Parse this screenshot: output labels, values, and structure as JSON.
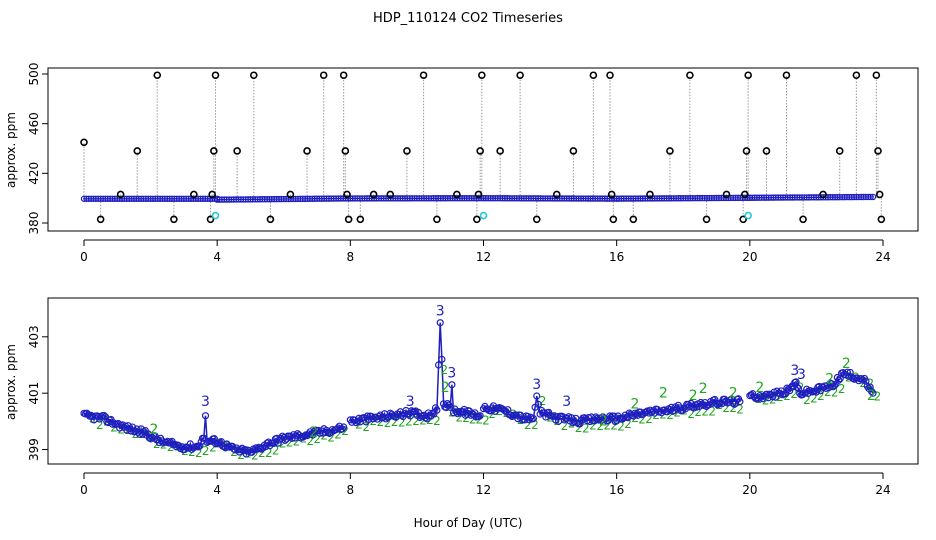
{
  "title": "HDP_110124  CO2 Timeseries",
  "xlabel": "Hour of Day (UTC)",
  "colors": {
    "top_points": "#000000",
    "top_line": "#1f1fbf",
    "top_cyan": "#22c8e0",
    "spike_lines": "#9a9a9a",
    "series3": "#1f1fbf",
    "series2": "#1fa61f"
  },
  "chart_data": [
    {
      "type": "scatter",
      "ylabel": "approx. ppm",
      "xlim": [
        0,
        24
      ],
      "ylim": [
        380,
        500
      ],
      "x_ticks": [
        "0",
        "4",
        "8",
        "12",
        "16",
        "20",
        "24"
      ],
      "y_ticks": [
        "380",
        "420",
        "460",
        "500"
      ],
      "baseline_segments": [
        {
          "x0": 0.0,
          "x1": 4.0,
          "y0": 399.5,
          "y1": 399.5
        },
        {
          "x0": 4.0,
          "x1": 8.0,
          "y0": 398.8,
          "y1": 399.8
        },
        {
          "x0": 8.0,
          "x1": 12.0,
          "y0": 399.8,
          "y1": 400.0
        },
        {
          "x0": 12.0,
          "x1": 16.0,
          "y0": 400.0,
          "y1": 399.6
        },
        {
          "x0": 16.0,
          "x1": 20.0,
          "y0": 399.6,
          "y1": 400.3
        },
        {
          "x0": 20.0,
          "x1": 23.7,
          "y0": 400.3,
          "y1": 401.0
        }
      ],
      "spikes": [
        {
          "x": 0.0,
          "y": 445
        },
        {
          "x": 0.5,
          "y": 383
        },
        {
          "x": 1.1,
          "y": 403
        },
        {
          "x": 1.6,
          "y": 438
        },
        {
          "x": 2.2,
          "y": 499
        },
        {
          "x": 2.7,
          "y": 383
        },
        {
          "x": 3.3,
          "y": 403
        },
        {
          "x": 3.8,
          "y": 383
        },
        {
          "x": 3.85,
          "y": 403
        },
        {
          "x": 3.9,
          "y": 438
        },
        {
          "x": 3.95,
          "y": 499
        },
        {
          "x": 4.6,
          "y": 438
        },
        {
          "x": 5.1,
          "y": 499
        },
        {
          "x": 5.6,
          "y": 383
        },
        {
          "x": 6.2,
          "y": 403
        },
        {
          "x": 6.7,
          "y": 438
        },
        {
          "x": 7.2,
          "y": 499
        },
        {
          "x": 7.8,
          "y": 499
        },
        {
          "x": 7.85,
          "y": 438
        },
        {
          "x": 7.9,
          "y": 403
        },
        {
          "x": 7.95,
          "y": 383
        },
        {
          "x": 8.3,
          "y": 383
        },
        {
          "x": 8.7,
          "y": 403
        },
        {
          "x": 9.2,
          "y": 403
        },
        {
          "x": 9.7,
          "y": 438
        },
        {
          "x": 10.2,
          "y": 499
        },
        {
          "x": 10.6,
          "y": 383
        },
        {
          "x": 11.2,
          "y": 403
        },
        {
          "x": 11.8,
          "y": 383
        },
        {
          "x": 11.85,
          "y": 403
        },
        {
          "x": 11.9,
          "y": 438
        },
        {
          "x": 11.95,
          "y": 499
        },
        {
          "x": 12.5,
          "y": 438
        },
        {
          "x": 13.1,
          "y": 499
        },
        {
          "x": 13.6,
          "y": 383
        },
        {
          "x": 14.2,
          "y": 403
        },
        {
          "x": 14.7,
          "y": 438
        },
        {
          "x": 15.3,
          "y": 499
        },
        {
          "x": 15.8,
          "y": 499
        },
        {
          "x": 15.85,
          "y": 403
        },
        {
          "x": 15.9,
          "y": 383
        },
        {
          "x": 16.5,
          "y": 383
        },
        {
          "x": 17.0,
          "y": 403
        },
        {
          "x": 17.6,
          "y": 438
        },
        {
          "x": 18.2,
          "y": 499
        },
        {
          "x": 18.7,
          "y": 383
        },
        {
          "x": 19.3,
          "y": 403
        },
        {
          "x": 19.8,
          "y": 383
        },
        {
          "x": 19.85,
          "y": 403
        },
        {
          "x": 19.9,
          "y": 438
        },
        {
          "x": 19.95,
          "y": 499
        },
        {
          "x": 20.5,
          "y": 438
        },
        {
          "x": 21.1,
          "y": 499
        },
        {
          "x": 21.6,
          "y": 383
        },
        {
          "x": 22.2,
          "y": 403
        },
        {
          "x": 22.7,
          "y": 438
        },
        {
          "x": 23.2,
          "y": 499
        },
        {
          "x": 23.8,
          "y": 499
        },
        {
          "x": 23.85,
          "y": 438
        },
        {
          "x": 23.9,
          "y": 403
        },
        {
          "x": 23.95,
          "y": 383
        }
      ],
      "cyan_points": [
        {
          "x": 3.95,
          "y": 386
        },
        {
          "x": 12.0,
          "y": 386
        },
        {
          "x": 19.95,
          "y": 386
        }
      ]
    },
    {
      "type": "scatter",
      "ylabel": "approx. ppm",
      "xlim": [
        0,
        24
      ],
      "ylim": [
        398.7,
        404.2
      ],
      "x_ticks": [
        "0",
        "4",
        "8",
        "12",
        "16",
        "20",
        "24"
      ],
      "y_ticks": [
        "399",
        "401",
        "403"
      ],
      "series": [
        {
          "name": "3",
          "color": "#1f1fbf",
          "trend": [
            {
              "x": 0.0,
              "y": 400.2
            },
            {
              "x": 0.6,
              "y": 400.1
            },
            {
              "x": 1.2,
              "y": 399.8
            },
            {
              "x": 1.8,
              "y": 399.6
            },
            {
              "x": 2.3,
              "y": 399.3
            },
            {
              "x": 2.9,
              "y": 399.1
            },
            {
              "x": 3.4,
              "y": 399.1
            },
            {
              "x": 3.6,
              "y": 399.4
            },
            {
              "x": 3.65,
              "y": 400.2
            },
            {
              "x": 3.7,
              "y": 399.3
            },
            {
              "x": 4.0,
              "y": 399.3
            },
            {
              "x": 4.5,
              "y": 399.0
            },
            {
              "x": 5.0,
              "y": 398.9
            },
            {
              "x": 5.5,
              "y": 399.2
            },
            {
              "x": 6.0,
              "y": 399.4
            },
            {
              "x": 6.5,
              "y": 399.5
            },
            {
              "x": 7.0,
              "y": 399.6
            },
            {
              "x": 7.5,
              "y": 399.7
            },
            {
              "x": 7.8,
              "y": 399.8
            }
          ]
        },
        {
          "name": "3",
          "color": "#1f1fbf",
          "trend": [
            {
              "x": 8.0,
              "y": 400.0
            },
            {
              "x": 8.6,
              "y": 400.1
            },
            {
              "x": 9.2,
              "y": 400.2
            },
            {
              "x": 9.8,
              "y": 400.3
            },
            {
              "x": 10.3,
              "y": 400.2
            },
            {
              "x": 10.6,
              "y": 400.4
            },
            {
              "x": 10.65,
              "y": 402.0
            },
            {
              "x": 10.7,
              "y": 403.5
            },
            {
              "x": 10.75,
              "y": 402.2
            },
            {
              "x": 10.8,
              "y": 400.6
            },
            {
              "x": 11.0,
              "y": 400.5
            },
            {
              "x": 11.05,
              "y": 401.3
            },
            {
              "x": 11.1,
              "y": 400.4
            },
            {
              "x": 11.5,
              "y": 400.3
            },
            {
              "x": 11.9,
              "y": 400.2
            }
          ]
        },
        {
          "name": "3",
          "color": "#1f1fbf",
          "trend": [
            {
              "x": 12.0,
              "y": 400.5
            },
            {
              "x": 12.6,
              "y": 400.4
            },
            {
              "x": 13.2,
              "y": 400.1
            },
            {
              "x": 13.5,
              "y": 400.1
            },
            {
              "x": 13.6,
              "y": 400.9
            },
            {
              "x": 13.7,
              "y": 400.3
            },
            {
              "x": 14.3,
              "y": 400.1
            },
            {
              "x": 14.9,
              "y": 400.0
            },
            {
              "x": 15.5,
              "y": 400.1
            },
            {
              "x": 16.0,
              "y": 400.1
            },
            {
              "x": 16.8,
              "y": 400.3
            },
            {
              "x": 17.6,
              "y": 400.4
            },
            {
              "x": 18.4,
              "y": 400.6
            },
            {
              "x": 19.2,
              "y": 400.7
            },
            {
              "x": 19.7,
              "y": 400.7
            }
          ]
        },
        {
          "name": "3",
          "color": "#1f1fbf",
          "trend": [
            {
              "x": 20.0,
              "y": 400.9
            },
            {
              "x": 20.6,
              "y": 400.9
            },
            {
              "x": 21.2,
              "y": 401.1
            },
            {
              "x": 21.35,
              "y": 401.4
            },
            {
              "x": 21.5,
              "y": 401.0
            },
            {
              "x": 22.0,
              "y": 401.1
            },
            {
              "x": 22.5,
              "y": 401.3
            },
            {
              "x": 22.8,
              "y": 401.7
            },
            {
              "x": 23.1,
              "y": 401.6
            },
            {
              "x": 23.4,
              "y": 401.5
            },
            {
              "x": 23.7,
              "y": 401.0
            }
          ]
        }
      ],
      "labels": [
        {
          "text": "3",
          "x": 3.65,
          "y": 400.55,
          "color": "#1f1fbf"
        },
        {
          "text": "3",
          "x": 10.7,
          "y": 403.75,
          "color": "#1f1fbf"
        },
        {
          "text": "3",
          "x": 11.05,
          "y": 401.55,
          "color": "#1f1fbf"
        },
        {
          "text": "3",
          "x": 13.6,
          "y": 401.15,
          "color": "#1f1fbf"
        },
        {
          "text": "3",
          "x": 14.5,
          "y": 400.55,
          "color": "#1f1fbf"
        },
        {
          "text": "3",
          "x": 21.35,
          "y": 401.65,
          "color": "#1f1fbf"
        },
        {
          "text": "3",
          "x": 21.55,
          "y": 401.5,
          "color": "#1f1fbf"
        },
        {
          "text": "3",
          "x": 9.8,
          "y": 400.55,
          "color": "#1f1fbf"
        },
        {
          "text": "2",
          "x": 10.85,
          "y": 401.05,
          "color": "#1fa61f"
        },
        {
          "text": "2",
          "x": 16.55,
          "y": 400.45,
          "color": "#1fa61f"
        },
        {
          "text": "2",
          "x": 17.4,
          "y": 400.85,
          "color": "#1fa61f"
        },
        {
          "text": "2",
          "x": 18.3,
          "y": 400.75,
          "color": "#1fa61f"
        },
        {
          "text": "2",
          "x": 18.6,
          "y": 401.0,
          "color": "#1fa61f"
        },
        {
          "text": "2",
          "x": 19.5,
          "y": 400.85,
          "color": "#1fa61f"
        },
        {
          "text": "2",
          "x": 20.3,
          "y": 401.05,
          "color": "#1fa61f"
        },
        {
          "text": "2",
          "x": 22.4,
          "y": 401.35,
          "color": "#1fa61f"
        },
        {
          "text": "2",
          "x": 22.9,
          "y": 401.9,
          "color": "#1fa61f"
        },
        {
          "text": "2",
          "x": 23.65,
          "y": 400.75,
          "color": "#1fa61f"
        },
        {
          "text": "2",
          "x": 2.1,
          "y": 399.55,
          "color": "#1fa61f"
        },
        {
          "text": "2",
          "x": 6.9,
          "y": 399.45,
          "color": "#1fa61f"
        },
        {
          "text": "2",
          "x": 15.6,
          "y": 399.85,
          "color": "#1fa61f"
        }
      ]
    }
  ]
}
